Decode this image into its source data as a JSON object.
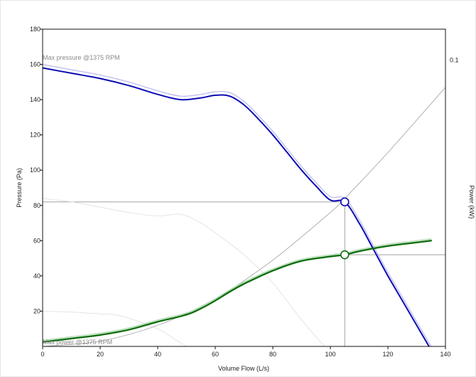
{
  "chart_data": {
    "type": "line",
    "xlabel": "Volume Flow (L/s)",
    "ylabel": "Pressure (Pa)",
    "y2label": "Power (kW)",
    "xlim": [
      0,
      140
    ],
    "ylim": [
      0,
      180
    ],
    "x_ticks": [
      0,
      20,
      40,
      60,
      80,
      100,
      120,
      140
    ],
    "y_ticks": [
      20,
      40,
      60,
      80,
      100,
      120,
      140,
      160,
      180
    ],
    "y2_ticks": [
      "0.1"
    ],
    "grid": false,
    "annotations": [
      {
        "text": "Max pressure @1375 RPM",
        "x": 0,
        "y": 162
      },
      {
        "text": "Max power @1375 RPM",
        "x": 0,
        "y": 1
      }
    ],
    "series": [
      {
        "color": "#0b0bb5",
        "style": "pressure",
        "x": [
          0,
          10,
          20,
          30,
          40,
          48,
          55,
          60,
          65,
          70,
          75,
          80,
          85,
          90,
          95,
          100,
          105,
          110,
          115,
          120,
          125,
          130,
          135
        ],
        "y": [
          158,
          155,
          152,
          148,
          143,
          140,
          141,
          142.5,
          142,
          137,
          129,
          120,
          110,
          100,
          91,
          83,
          82,
          70,
          55,
          40,
          26,
          12,
          -2
        ]
      },
      {
        "color": "#b8b8ec",
        "style": "pressure-halo",
        "x": [
          0,
          10,
          20,
          30,
          40,
          48,
          55,
          60,
          65,
          70,
          75,
          80,
          85,
          90,
          95,
          100,
          105,
          110,
          115,
          120,
          125,
          130,
          135
        ],
        "y": [
          160,
          157,
          154,
          150,
          145,
          142,
          143,
          144.5,
          144,
          139,
          131,
          122,
          112,
          102,
          93,
          85,
          84,
          72,
          57,
          42,
          28,
          14,
          0
        ]
      },
      {
        "color": "#0d6e0d",
        "style": "power",
        "x": [
          0,
          10,
          20,
          30,
          40,
          50,
          55,
          60,
          65,
          70,
          80,
          90,
          100,
          105,
          110,
          120,
          130,
          135
        ],
        "y": [
          2.5,
          4.5,
          6.5,
          9.5,
          14,
          18,
          21.5,
          26,
          31,
          35.5,
          43,
          48.5,
          51,
          52,
          54,
          57,
          59,
          60
        ]
      },
      {
        "color": "#a8d8a8",
        "style": "power-halo",
        "x": [
          0,
          10,
          20,
          30,
          40,
          50,
          55,
          60,
          65,
          70,
          80,
          90,
          100,
          105,
          110,
          120,
          130,
          135
        ],
        "y": [
          3.5,
          5.5,
          7.5,
          10.5,
          15,
          19,
          22.5,
          27,
          32,
          36.5,
          44,
          49.5,
          52,
          53,
          55,
          58,
          60,
          61
        ]
      },
      {
        "color": "#b0b0b0",
        "style": "system-curve",
        "x": [
          0,
          20,
          40,
          60,
          80,
          100,
          105,
          120,
          140
        ],
        "y": [
          0,
          3,
          12,
          27,
          49,
          76,
          84,
          110,
          147
        ]
      },
      {
        "color": "#e4e4e4",
        "style": "faint-pressure",
        "x": [
          0,
          10,
          20,
          30,
          40,
          48,
          55,
          62,
          70,
          80,
          90,
          98
        ],
        "y": [
          84,
          82,
          79,
          76,
          74,
          75,
          70,
          62,
          52,
          36,
          15,
          0
        ]
      },
      {
        "color": "#e4e4e4",
        "style": "faint-power",
        "x": [
          0,
          10,
          20,
          25,
          30,
          40,
          47,
          50
        ],
        "y": [
          20,
          19.5,
          18.5,
          18,
          16,
          10,
          3,
          0
        ]
      }
    ],
    "operating_points": [
      {
        "x": 105,
        "y": 82,
        "color": "#0b0bb5"
      },
      {
        "x": 105,
        "y": 52,
        "color": "#0d6e0d"
      }
    ],
    "reference_lines": [
      {
        "orientation": "horizontal",
        "y": 82,
        "x_from": 0,
        "x_to": 105
      },
      {
        "orientation": "vertical",
        "x": 105,
        "y_from": 0,
        "y_to": 82
      },
      {
        "orientation": "horizontal",
        "y": 52,
        "x_from": 105,
        "x_to": 140
      }
    ]
  }
}
